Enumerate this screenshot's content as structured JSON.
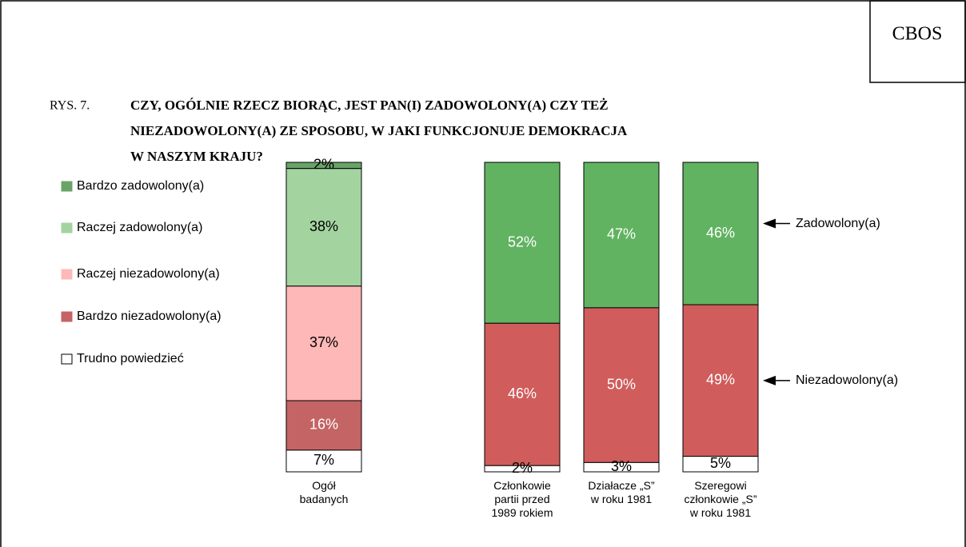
{
  "header": {
    "logo": "CBOS",
    "figure": "RYS. 7.",
    "title": [
      "CZY, OGÓLNIE RZECZ BIORĄC, JEST PAN(I) ZADOWOLONY(A) CZY TEŻ",
      "NIEZADOWOLONY(A) ZE SPOSOBU, W JAKI FUNKCJONUJE DEMOKRACJA",
      "W NASZYM KRAJU?"
    ]
  },
  "chart_data": [
    {
      "type": "stacked_bar",
      "categories": [
        "Ogół\nbadanych"
      ],
      "series": [
        {
          "name": "Bardzo zadowolony(a)",
          "color": "#68a468",
          "label_color": "#000000",
          "values": [
            2
          ],
          "value_labels": [
            "2%"
          ]
        },
        {
          "name": "Raczej zadowolony(a)",
          "color": "#a3d4a0",
          "label_color": "#000000",
          "values": [
            38
          ],
          "value_labels": [
            "38%"
          ]
        },
        {
          "name": "Raczej niezadowolony(a)",
          "color": "#ffb8b8",
          "label_color": "#000000",
          "values": [
            37
          ],
          "value_labels": [
            "37%"
          ]
        },
        {
          "name": "Bardzo niezadowolony(a)",
          "color": "#c46464",
          "label_color": "#ffffff",
          "values": [
            16
          ],
          "value_labels": [
            "16%"
          ]
        },
        {
          "name": "Trudno powiedzieć",
          "color": "#ffffff",
          "label_color": "#000000",
          "values": [
            7
          ],
          "value_labels": [
            "7%"
          ]
        }
      ]
    },
    {
      "type": "stacked_bar",
      "categories": [
        "Członkowie\npartii przed\n1989 rokiem",
        "Działacze „S”\nw roku 1981",
        "Szeregowi\nczłonkowie „S”\nw roku 1981"
      ],
      "series": [
        {
          "name": "Zadowolony(a)",
          "color": "#61b361",
          "label_color": "#ffffff",
          "values": [
            52,
            47,
            46
          ],
          "value_labels": [
            "52%",
            "47%",
            "46%"
          ]
        },
        {
          "name": "Niezadowolony(a)",
          "color": "#d05c5c",
          "label_color": "#ffffff",
          "values": [
            46,
            50,
            49
          ],
          "value_labels": [
            "46%",
            "50%",
            "49%"
          ]
        },
        {
          "color": "#ffffff",
          "label_color": "#000000",
          "values": [
            2,
            3,
            5
          ],
          "value_labels": [
            "2%",
            "3%",
            "5%"
          ]
        }
      ]
    }
  ]
}
